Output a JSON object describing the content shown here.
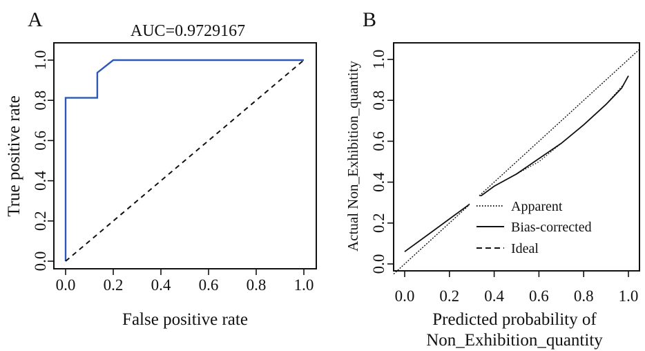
{
  "figure": {
    "panels": [
      "A",
      "B"
    ]
  },
  "chart_data": [
    {
      "type": "line",
      "panel_label": "A",
      "title": "AUC=0.9729167",
      "xlabel": "False positive rate",
      "ylabel": "True positive rate",
      "xlim": [
        0,
        1
      ],
      "ylim": [
        0,
        1
      ],
      "xticks": [
        "0.0",
        "0.2",
        "0.4",
        "0.6",
        "0.8",
        "1.0"
      ],
      "yticks": [
        "0.0",
        "0.2",
        "0.4",
        "0.6",
        "0.8",
        "1.0"
      ],
      "grid": false,
      "series": [
        {
          "style": "solid",
          "color": "#2b59b5",
          "x": [
            0,
            0,
            0.133,
            0.133,
            0.2,
            1.0
          ],
          "y": [
            0,
            0.8125,
            0.8125,
            0.9375,
            1.0,
            1.0
          ]
        },
        {
          "style": "dashed",
          "color": "#111111",
          "x": [
            0,
            1
          ],
          "y": [
            0,
            1
          ]
        }
      ]
    },
    {
      "type": "line",
      "panel_label": "B",
      "xlabel_line1": "Predicted probability of",
      "xlabel_line2": "Non_Exhibition_quantity",
      "ylabel": "Actual Non_Exhibition_quantity",
      "xlim": [
        0,
        1
      ],
      "ylim": [
        0,
        1
      ],
      "xticks": [
        "0.0",
        "0.2",
        "0.4",
        "0.6",
        "0.8",
        "1.0"
      ],
      "yticks": [
        "0.0",
        "0.2",
        "0.4",
        "0.6",
        "0.8",
        "1.0"
      ],
      "grid": false,
      "legend_position": "lower-right",
      "series": [
        {
          "name": "Apparent",
          "style": "dotted",
          "color": "#111111",
          "x": [
            0.0,
            0.1,
            0.2,
            0.3,
            0.4,
            0.5,
            0.6,
            0.7,
            0.8,
            0.9,
            0.98
          ],
          "y": [
            0.06,
            0.14,
            0.22,
            0.3,
            0.38,
            0.44,
            0.5,
            0.59,
            0.68,
            0.78,
            0.88
          ]
        },
        {
          "name": "Bias-corrected",
          "style": "solid",
          "color": "#111111",
          "x": [
            0.0,
            0.1,
            0.2,
            0.3,
            0.4,
            0.5,
            0.58,
            0.7,
            0.8,
            0.9,
            0.97,
            1.0
          ],
          "y": [
            0.06,
            0.14,
            0.22,
            0.3,
            0.38,
            0.44,
            0.5,
            0.59,
            0.68,
            0.78,
            0.86,
            0.92
          ]
        },
        {
          "name": "Ideal",
          "style": "dashed",
          "color": "#111111",
          "x": [
            0,
            1
          ],
          "y": [
            0,
            1
          ]
        }
      ]
    }
  ]
}
